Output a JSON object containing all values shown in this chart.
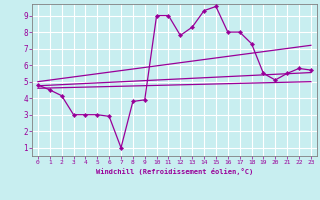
{
  "xlabel": "Windchill (Refroidissement éolien,°C)",
  "background_color": "#c8eef0",
  "grid_color": "#ffffff",
  "line_color": "#990099",
  "spine_color": "#808080",
  "x_ticks": [
    0,
    1,
    2,
    3,
    4,
    5,
    6,
    7,
    8,
    9,
    10,
    11,
    12,
    13,
    14,
    15,
    16,
    17,
    18,
    19,
    20,
    21,
    22,
    23
  ],
  "y_ticks": [
    1,
    2,
    3,
    4,
    5,
    6,
    7,
    8,
    9
  ],
  "xlim": [
    -0.5,
    23.5
  ],
  "ylim": [
    0.5,
    9.7
  ],
  "line1_x": [
    0,
    1,
    2,
    3,
    4,
    5,
    6,
    7,
    8,
    9,
    10,
    11,
    12,
    13,
    14,
    15,
    16,
    17,
    18,
    19,
    20,
    21,
    22,
    23
  ],
  "line1_y": [
    4.8,
    4.5,
    4.15,
    3.0,
    3.0,
    3.0,
    2.9,
    1.0,
    3.8,
    3.9,
    9.0,
    9.0,
    7.8,
    8.3,
    9.3,
    9.55,
    8.0,
    8.0,
    7.3,
    5.5,
    5.1,
    5.5,
    5.8,
    5.7
  ],
  "line2_x": [
    0,
    23
  ],
  "line2_y": [
    5.0,
    7.2
  ],
  "line3_x": [
    0,
    23
  ],
  "line3_y": [
    4.75,
    5.55
  ],
  "line4_x": [
    0,
    23
  ],
  "line4_y": [
    4.6,
    5.0
  ]
}
